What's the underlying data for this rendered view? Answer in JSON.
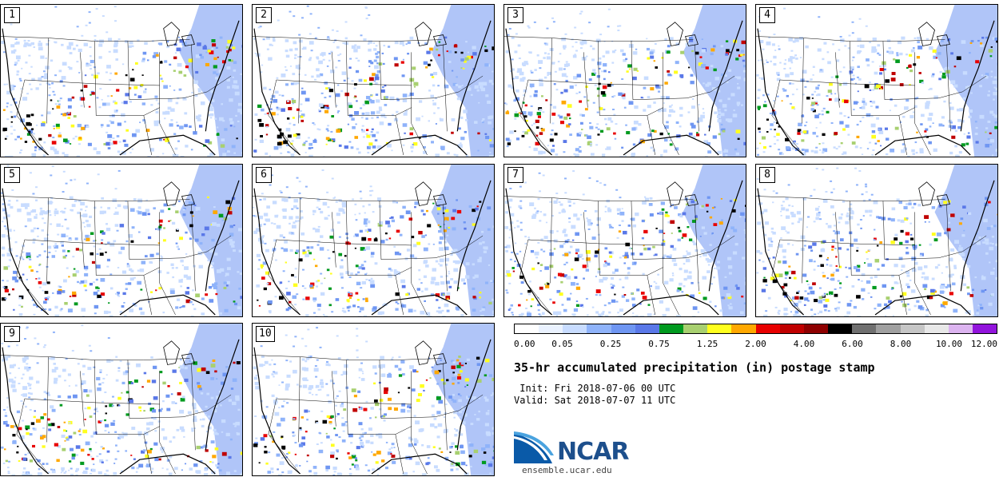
{
  "figure": {
    "title": "35-hr accumulated precipitation (in) postage stamp",
    "init": " Init: Fri 2018-07-06 00 UTC",
    "valid": "Valid: Sat 2018-07-07 11 UTC",
    "website": "ensemble.ucar.edu",
    "logo_text": "NCAR"
  },
  "members": [
    "1",
    "2",
    "3",
    "4",
    "5",
    "6",
    "7",
    "8",
    "9",
    "10"
  ],
  "colorbar": {
    "colors": [
      "#ffffff",
      "#eaf2ff",
      "#c8dcff",
      "#8fb3fa",
      "#6f96f2",
      "#5a78e8",
      "#009a1f",
      "#a8d070",
      "#ffff1e",
      "#ffa800",
      "#e80000",
      "#c00000",
      "#8e0000",
      "#000000",
      "#707070",
      "#a0a0a0",
      "#c6c6c6",
      "#e8e8e8",
      "#dcb4f0",
      "#9214dc"
    ],
    "tick_labels": [
      "0.00",
      "0.05",
      "0.25",
      "0.75",
      "1.25",
      "2.00",
      "4.00",
      "6.00",
      "8.00",
      "10.00",
      "12.00"
    ]
  },
  "colors": {
    "ncar_blue": "#1d4f8c",
    "swoosh_light": "#4aa3df",
    "swoosh_dark": "#0a5aa8"
  }
}
